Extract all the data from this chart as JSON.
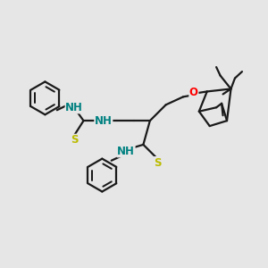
{
  "bg_color": "#e6e6e6",
  "bond_color": "#1a1a1a",
  "N_color": "#0000ee",
  "H_color": "#008080",
  "S_color": "#bbbb00",
  "O_color": "#ff0000",
  "line_width": 1.6,
  "font_size": 8.5,
  "fig_w": 3.0,
  "fig_h": 3.0,
  "dpi": 100,
  "xlim": [
    0,
    10
  ],
  "ylim": [
    0,
    10
  ]
}
